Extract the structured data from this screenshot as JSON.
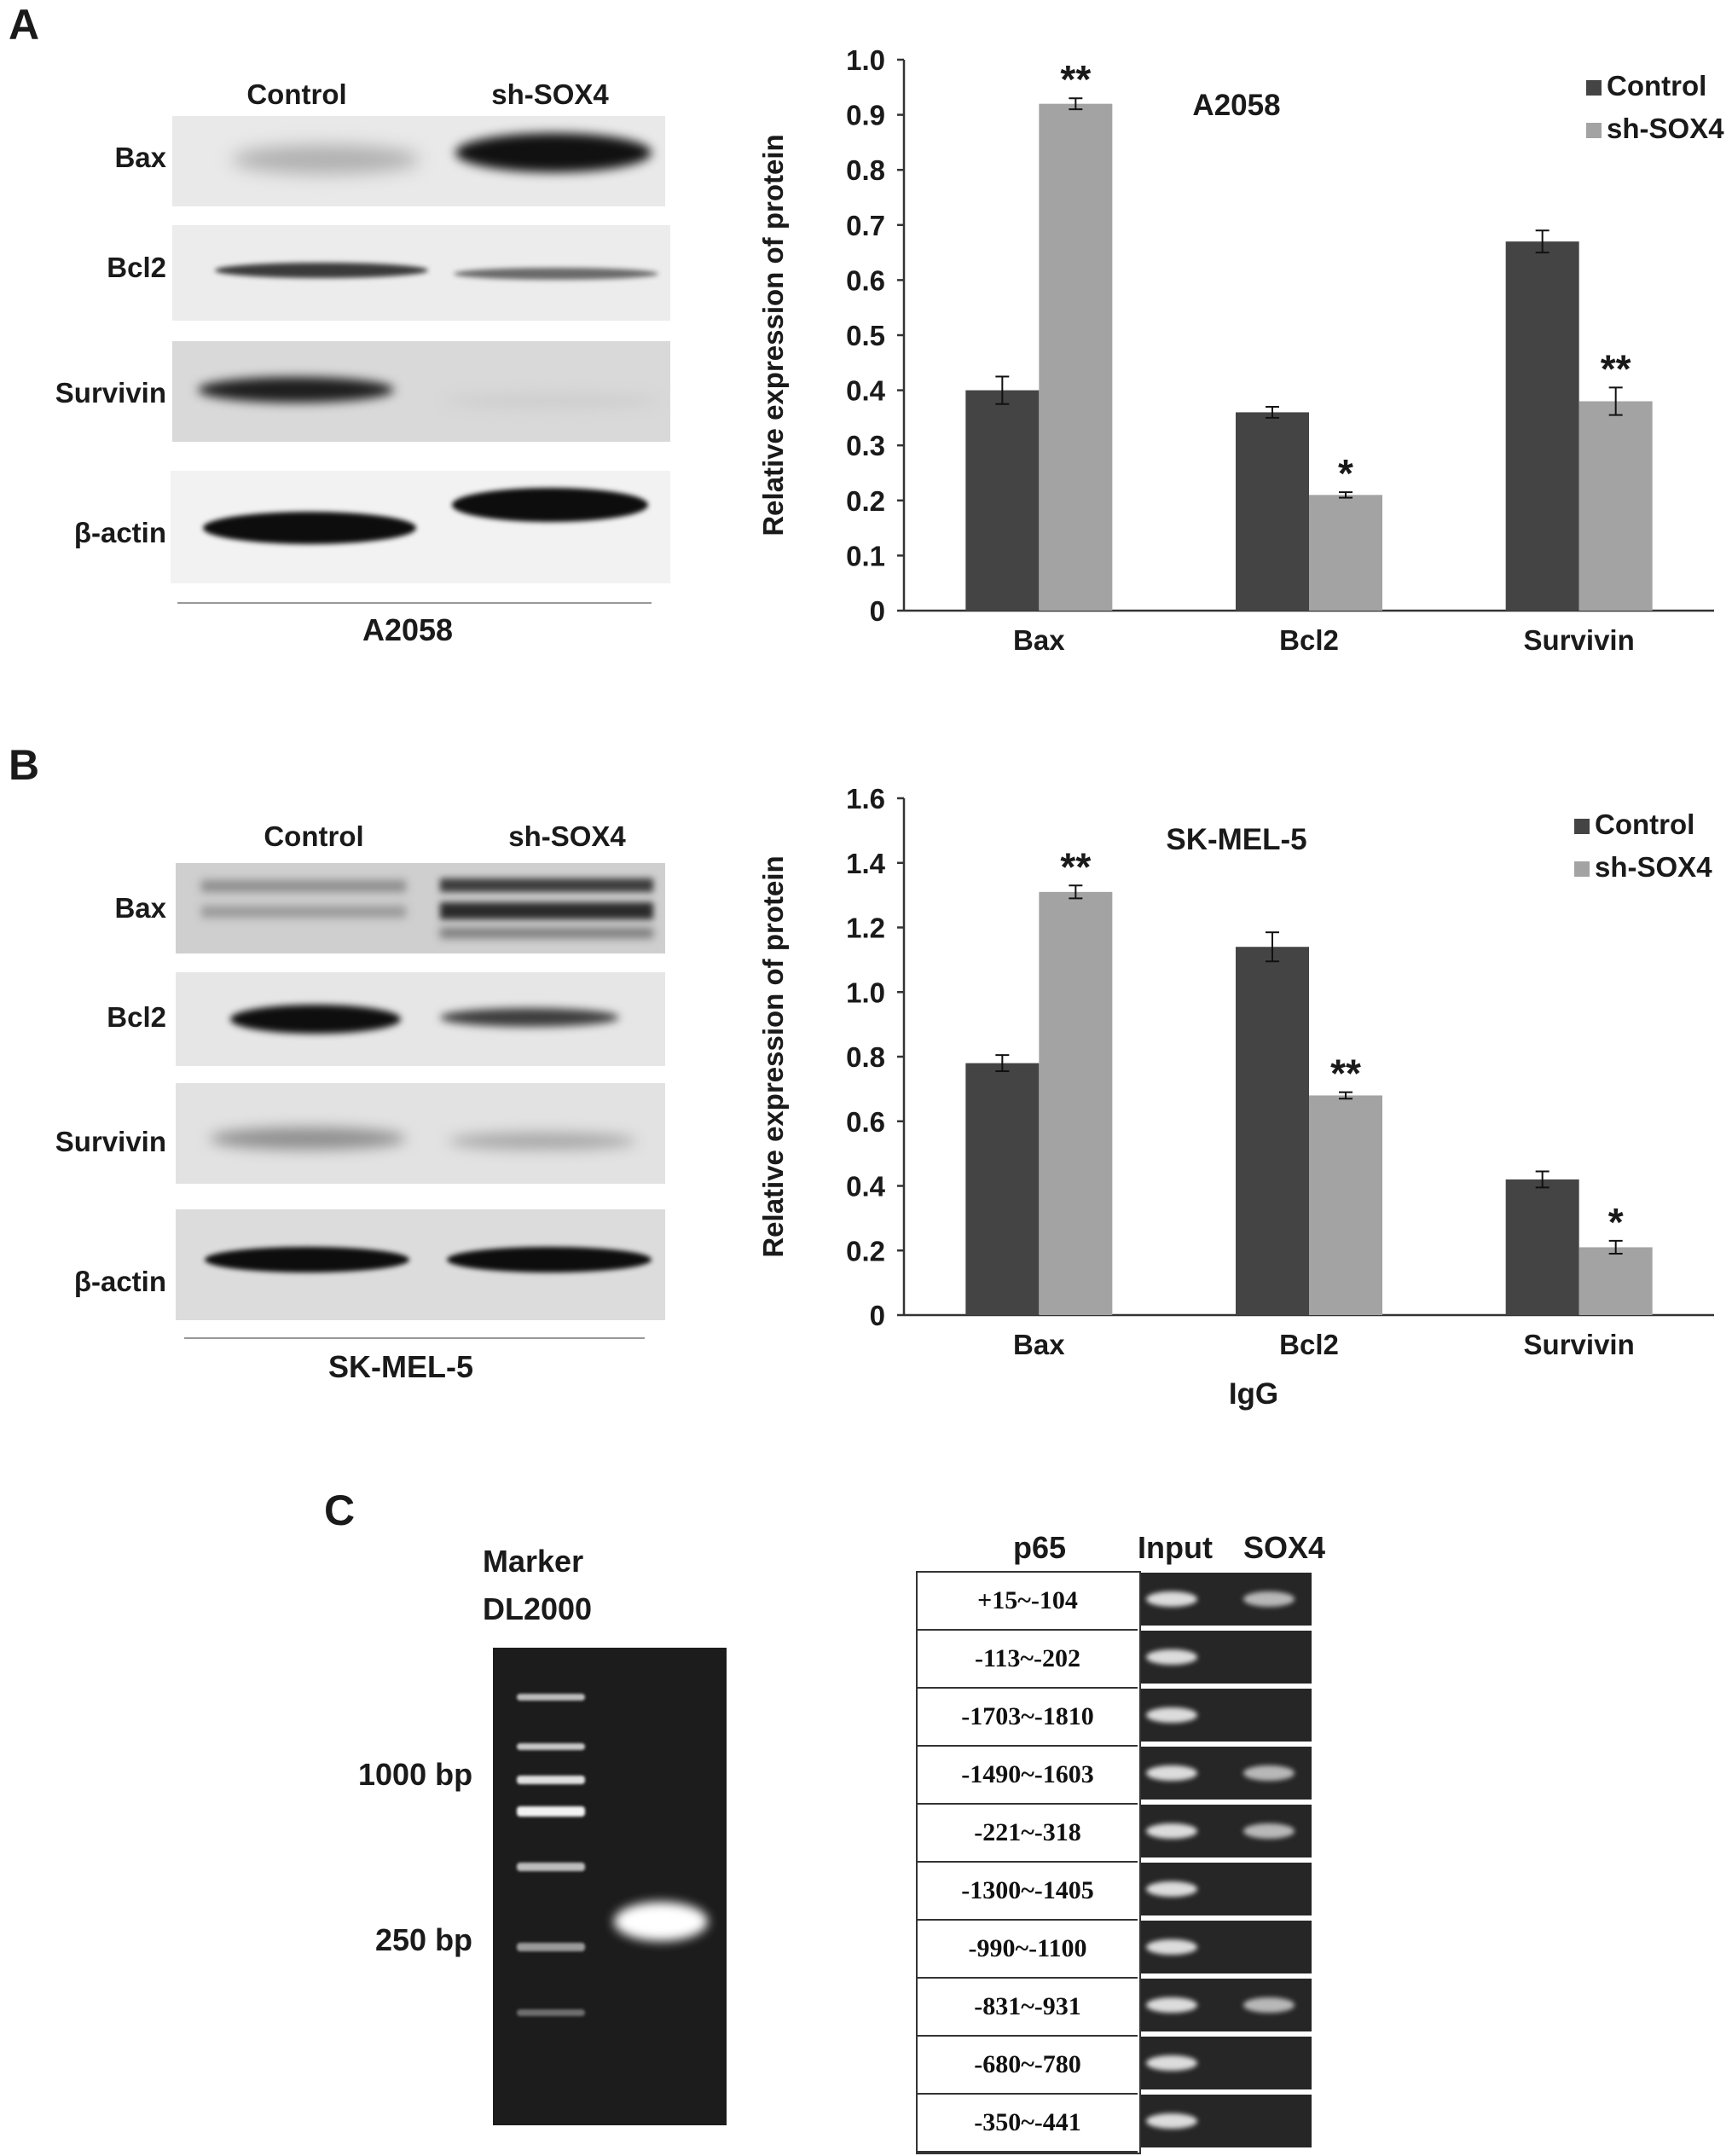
{
  "panels": {
    "A": "A",
    "B": "B",
    "C": "C"
  },
  "blot_a": {
    "lanes": [
      "Control",
      "sh-SOX4"
    ],
    "rows": [
      "Bax",
      "Bcl2",
      "Survivin",
      "β-actin"
    ],
    "caption": "A2058"
  },
  "blot_b": {
    "lanes": [
      "Control",
      "sh-SOX4"
    ],
    "rows": [
      "Bax",
      "Bcl2",
      "Survivin",
      "β-actin"
    ],
    "caption": "SK-MEL-5"
  },
  "chart_data": [
    {
      "type": "bar",
      "title": "A2058",
      "xlabel": "",
      "ylabel": "Relative expression of protein",
      "categories": [
        "Bax",
        "Bcl2",
        "Survivin"
      ],
      "series": [
        {
          "name": "Control",
          "values": [
            0.4,
            0.36,
            0.67
          ],
          "errors": [
            0.025,
            0.01,
            0.02
          ],
          "color": "#444444"
        },
        {
          "name": "sh-SOX4",
          "values": [
            0.92,
            0.21,
            0.38
          ],
          "errors": [
            0.01,
            0.005,
            0.025
          ],
          "color": "#a3a3a3"
        }
      ],
      "significance": [
        [
          "",
          "**"
        ],
        [
          "",
          "*"
        ],
        [
          "",
          "**"
        ]
      ],
      "ylim": [
        0,
        1.0
      ],
      "yticks": [
        "0",
        "0.1",
        "0.2",
        "0.3",
        "0.4",
        "0.5",
        "0.6",
        "0.7",
        "0.8",
        "0.9",
        "1.0"
      ],
      "legend_position": "top-right",
      "grid": false
    },
    {
      "type": "bar",
      "title": "SK-MEL-5",
      "xlabel": "IgG",
      "ylabel": "Relative expression of protein",
      "categories": [
        "Bax",
        "Bcl2",
        "Survivin"
      ],
      "series": [
        {
          "name": "Control",
          "values": [
            0.78,
            1.14,
            0.42
          ],
          "errors": [
            0.025,
            0.045,
            0.025
          ],
          "color": "#444444"
        },
        {
          "name": "sh-SOX4",
          "values": [
            1.31,
            0.68,
            0.21
          ],
          "errors": [
            0.02,
            0.01,
            0.02
          ],
          "color": "#a3a3a3"
        }
      ],
      "significance": [
        [
          "",
          "**"
        ],
        [
          "",
          "**"
        ],
        [
          "",
          "*"
        ]
      ],
      "ylim": [
        0,
        1.6
      ],
      "yticks": [
        "0",
        "0.2",
        "0.4",
        "0.6",
        "0.8",
        "1.0",
        "1.2",
        "1.4",
        "1.6"
      ],
      "legend_position": "top-right",
      "grid": false
    }
  ],
  "gel_c": {
    "marker_title_1": "Marker",
    "marker_title_2": "DL2000",
    "label_1000": "1000 bp",
    "label_250": "250 bp"
  },
  "chip_c": {
    "headers": [
      "p65",
      "Input",
      "SOX4"
    ],
    "rows": [
      {
        "region": "+15~-104",
        "sox4_band": true
      },
      {
        "region": "-113~-202",
        "sox4_band": false
      },
      {
        "region": "-1703~-1810",
        "sox4_band": false
      },
      {
        "region": "-1490~-1603",
        "sox4_band": true
      },
      {
        "region": "-221~-318",
        "sox4_band": true
      },
      {
        "region": "-1300~-1405",
        "sox4_band": false
      },
      {
        "region": "-990~-1100",
        "sox4_band": false
      },
      {
        "region": "-831~-931",
        "sox4_band": true
      },
      {
        "region": "-680~-780",
        "sox4_band": false
      },
      {
        "region": "-350~-441",
        "sox4_band": false
      }
    ]
  }
}
